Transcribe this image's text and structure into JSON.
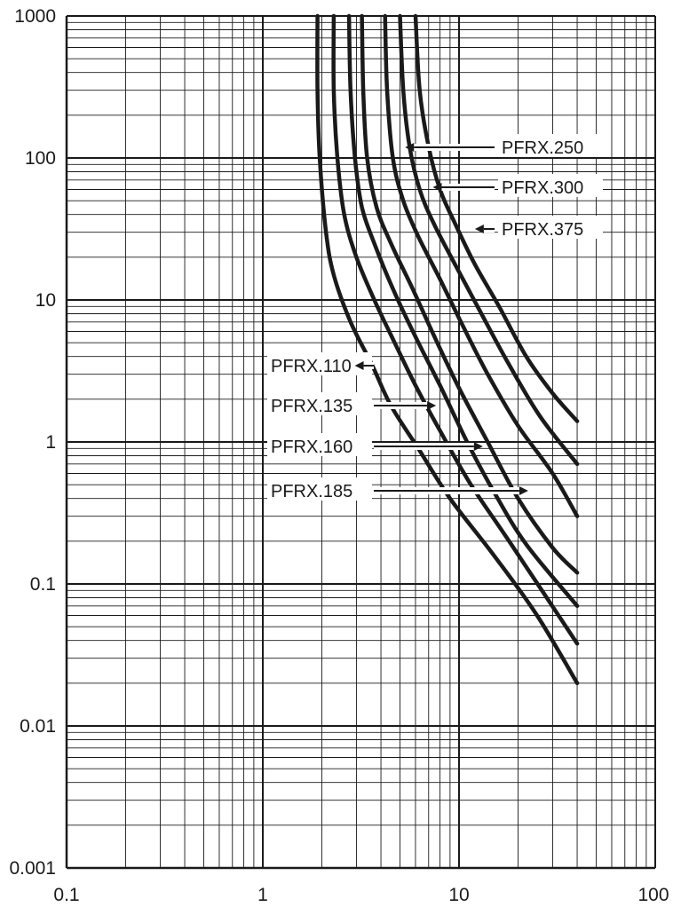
{
  "chart_data": {
    "type": "line",
    "title": "",
    "xlabel": "",
    "ylabel": "",
    "x_scale": "log",
    "y_scale": "log",
    "xlim": [
      0.1,
      100
    ],
    "ylim": [
      0.001,
      1000
    ],
    "grid": true,
    "x_ticks": [
      "0.1",
      "1",
      "10",
      "100"
    ],
    "y_ticks": [
      "0.001",
      "0.01",
      "0.1",
      "1",
      "10",
      "100",
      "1000"
    ],
    "colors": {
      "curve": "#1a1a1a",
      "grid": "#1a1a1a",
      "background": "#ffffff"
    },
    "series": [
      {
        "name": "PFRX.110",
        "points": [
          [
            1.9,
            1000
          ],
          [
            1.9,
            300
          ],
          [
            1.95,
            100
          ],
          [
            2.1,
            30
          ],
          [
            2.3,
            15
          ],
          [
            2.8,
            7
          ],
          [
            3.6,
            3.5
          ],
          [
            4.5,
            1.8
          ],
          [
            6.2,
            0.9
          ],
          [
            9,
            0.4
          ],
          [
            15,
            0.16
          ],
          [
            25,
            0.06
          ],
          [
            40,
            0.02
          ]
        ]
      },
      {
        "name": "PFRX.135",
        "points": [
          [
            2.3,
            1000
          ],
          [
            2.3,
            300
          ],
          [
            2.4,
            100
          ],
          [
            2.6,
            40
          ],
          [
            3.0,
            20
          ],
          [
            3.7,
            10
          ],
          [
            4.7,
            5
          ],
          [
            6.0,
            2.5
          ],
          [
            8.0,
            1.2
          ],
          [
            11.5,
            0.5
          ],
          [
            18,
            0.2
          ],
          [
            40,
            0.038
          ]
        ]
      },
      {
        "name": "PFRX.160",
        "points": [
          [
            2.75,
            1000
          ],
          [
            2.8,
            300
          ],
          [
            2.95,
            100
          ],
          [
            3.2,
            45
          ],
          [
            3.7,
            25
          ],
          [
            4.6,
            12
          ],
          [
            6.0,
            5.5
          ],
          [
            8.0,
            2.5
          ],
          [
            11,
            1.0
          ],
          [
            15,
            0.45
          ],
          [
            22,
            0.19
          ],
          [
            40,
            0.07
          ]
        ]
      },
      {
        "name": "PFRX.185",
        "points": [
          [
            3.2,
            1000
          ],
          [
            3.25,
            300
          ],
          [
            3.4,
            100
          ],
          [
            3.8,
            45
          ],
          [
            4.5,
            25
          ],
          [
            5.8,
            12
          ],
          [
            7.5,
            5.5
          ],
          [
            10,
            2.4
          ],
          [
            14,
            1.0
          ],
          [
            20,
            0.4
          ],
          [
            30,
            0.18
          ],
          [
            40,
            0.12
          ]
        ]
      },
      {
        "name": "PFRX.250",
        "points": [
          [
            4.2,
            1000
          ],
          [
            4.3,
            300
          ],
          [
            4.6,
            100
          ],
          [
            5.2,
            50
          ],
          [
            6.2,
            28
          ],
          [
            8.0,
            14
          ],
          [
            10.5,
            6.5
          ],
          [
            14,
            3
          ],
          [
            20,
            1.3
          ],
          [
            30,
            0.6
          ],
          [
            40,
            0.3
          ]
        ]
      },
      {
        "name": "PFRX.300",
        "points": [
          [
            5.0,
            1000
          ],
          [
            5.2,
            300
          ],
          [
            5.6,
            120
          ],
          [
            6.3,
            60
          ],
          [
            7.4,
            35
          ],
          [
            9.5,
            18
          ],
          [
            13,
            8
          ],
          [
            18,
            3.5
          ],
          [
            26,
            1.5
          ],
          [
            40,
            0.7
          ]
        ]
      },
      {
        "name": "PFRX.375",
        "points": [
          [
            6.0,
            1000
          ],
          [
            6.3,
            300
          ],
          [
            7.0,
            120
          ],
          [
            8.0,
            60
          ],
          [
            9.5,
            35
          ],
          [
            12,
            18
          ],
          [
            16,
            9
          ],
          [
            22,
            4
          ],
          [
            30,
            2.2
          ],
          [
            40,
            1.4
          ]
        ]
      }
    ],
    "annotations": [
      {
        "text": "PFRX.250",
        "points_to": [
          5.2,
          125
        ]
      },
      {
        "text": "PFRX.300",
        "points_to": [
          7.2,
          63
        ]
      },
      {
        "text": "PFRX.375",
        "points_to": [
          11.8,
          31
        ]
      },
      {
        "text": "PFRX.110",
        "points_to": [
          3.7,
          3.4
        ]
      },
      {
        "text": "PFRX.135",
        "points_to": [
          7.8,
          1.8
        ]
      },
      {
        "text": "PFRX.160",
        "points_to": [
          13.5,
          0.93
        ]
      },
      {
        "text": "PFRX.185",
        "points_to": [
          23,
          0.41
        ]
      }
    ]
  }
}
